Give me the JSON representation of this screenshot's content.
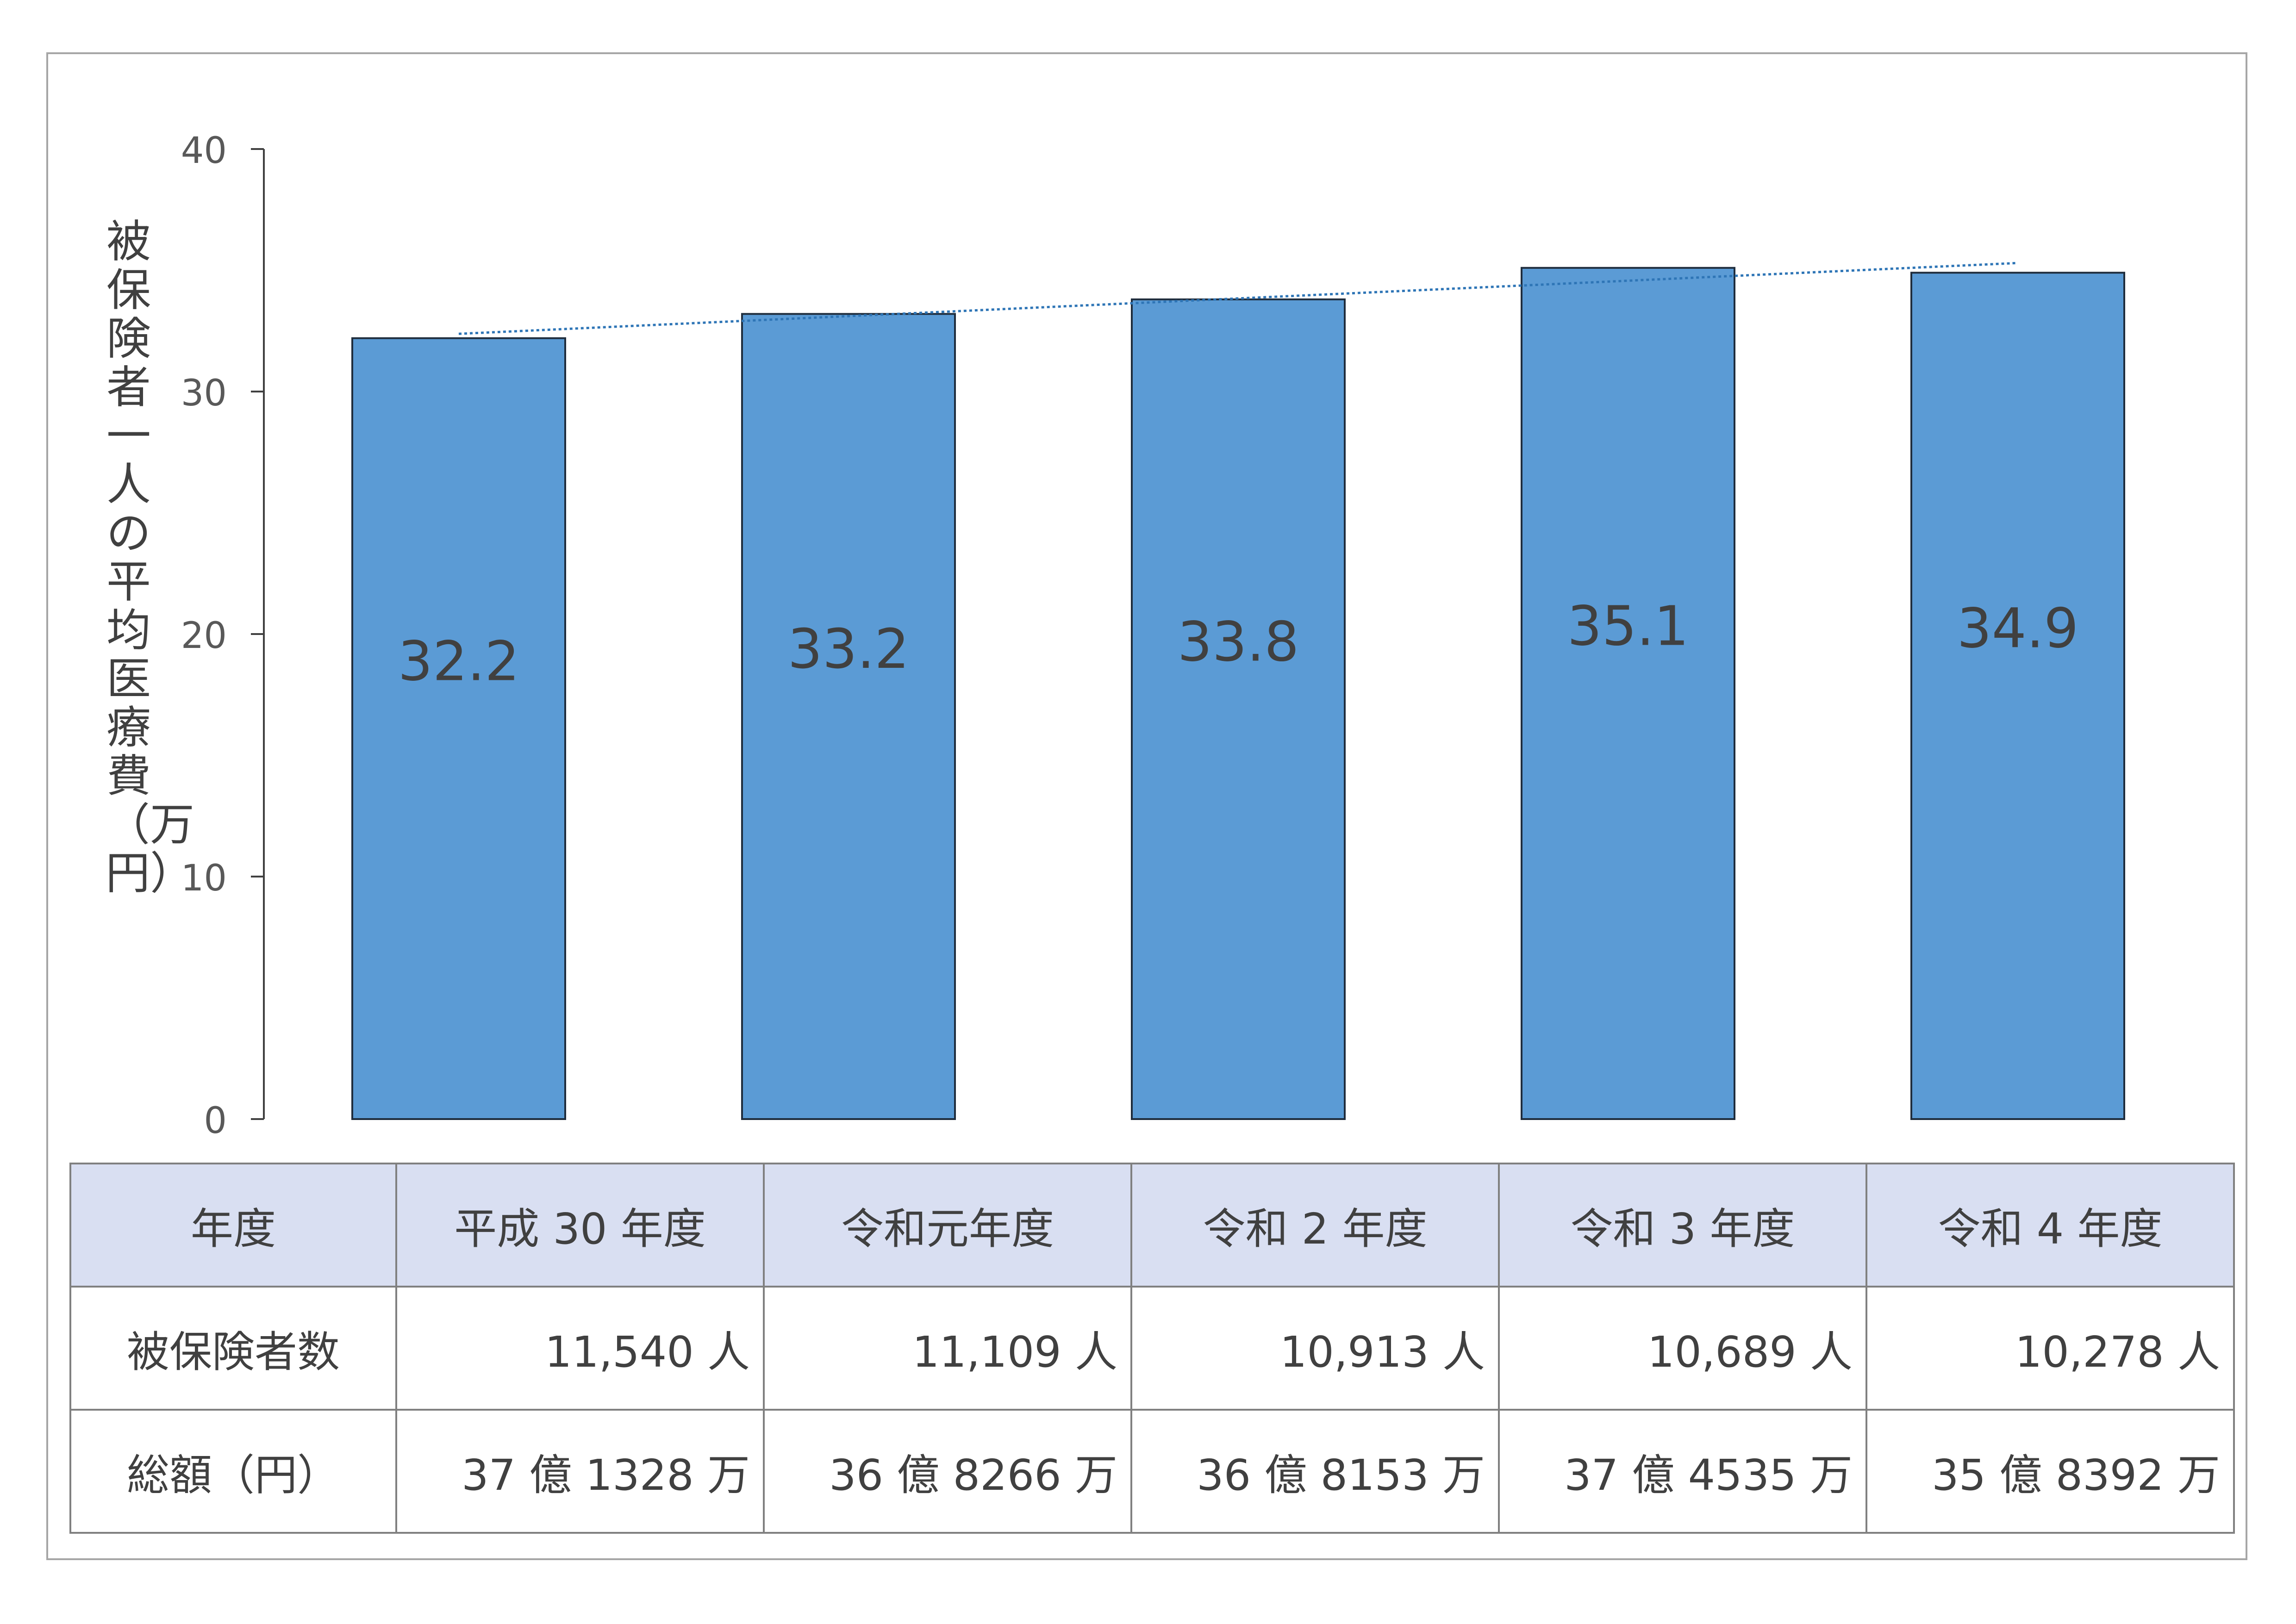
{
  "chart_data": {
    "type": "bar",
    "title": "",
    "ylabel": "被保険者一人の平均医療費（万円）",
    "xlabel": "",
    "ylim": [
      0,
      40
    ],
    "yticks": [
      0,
      10,
      20,
      30,
      40
    ],
    "categories": [
      "平成30年度",
      "令和元年度",
      "令和2年度",
      "令和3年度",
      "令和4年度"
    ],
    "values": [
      32.2,
      33.2,
      33.8,
      35.1,
      34.9
    ],
    "data_labels": [
      "32.2",
      "33.2",
      "33.8",
      "35.1",
      "34.9"
    ],
    "trendline": "linear",
    "grid": false,
    "legend": "none",
    "colors": {
      "bar": "#5b9bd5",
      "bar_edge": "#1f2d3d",
      "trend": "#2e75b6",
      "axis": "#404040"
    }
  },
  "table": {
    "header": [
      "年度",
      "平成 30 年度",
      "令和元年度",
      "令和 2 年度",
      "令和 3 年度",
      "令和 4 年度"
    ],
    "rows": [
      {
        "label": "被保険者数",
        "cells": [
          "11,540 人",
          "11,109 人",
          "10,913 人",
          "10,689 人",
          "10,278 人"
        ]
      },
      {
        "label": "総額（円）",
        "cells": [
          "37 億 1328 万",
          "36 億 8266 万",
          "36 億 8153 万",
          "37 億 4535 万",
          "35 億 8392 万"
        ]
      }
    ]
  }
}
